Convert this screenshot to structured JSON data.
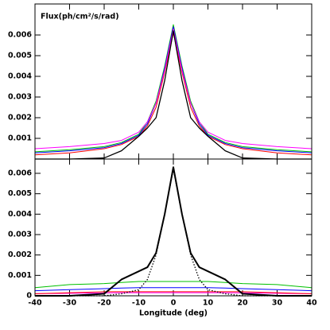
{
  "chart_data": [
    {
      "type": "line",
      "annotation": "Flux(ph/cm²/s/rad)",
      "x": [
        -40,
        -30,
        -20,
        -15,
        -10,
        -7.5,
        -5,
        -2.5,
        0,
        2.5,
        5,
        7.5,
        10,
        15,
        20,
        30,
        40
      ],
      "xlim": [
        -40,
        40
      ],
      "xticks": [
        -40,
        -30,
        -20,
        -10,
        0,
        10,
        20,
        30,
        40
      ],
      "xtick_labels": false,
      "ylim": [
        0,
        0.0075
      ],
      "yticks": [
        0.001,
        0.002,
        0.003,
        0.004,
        0.005,
        0.006
      ],
      "series": [
        {
          "color": "#ff0000",
          "style": "solid",
          "width": 1,
          "values": [
            0.0002,
            0.0003,
            0.0005,
            0.0007,
            0.0011,
            0.0016,
            0.0025,
            0.0042,
            0.0061,
            0.0042,
            0.0025,
            0.0016,
            0.0011,
            0.0007,
            0.0005,
            0.0003,
            0.0002
          ]
        },
        {
          "color": "#00c000",
          "style": "solid",
          "width": 1,
          "values": [
            0.00035,
            0.00045,
            0.0006,
            0.0008,
            0.0012,
            0.0018,
            0.0028,
            0.0045,
            0.0065,
            0.0045,
            0.0028,
            0.0018,
            0.0012,
            0.0008,
            0.0006,
            0.00045,
            0.00035
          ]
        },
        {
          "color": "#0000ff",
          "style": "solid",
          "width": 1,
          "values": [
            0.0003,
            0.0004,
            0.00055,
            0.00075,
            0.00115,
            0.0017,
            0.0027,
            0.0044,
            0.0064,
            0.0044,
            0.0027,
            0.0017,
            0.00115,
            0.00075,
            0.00055,
            0.0004,
            0.0003
          ]
        },
        {
          "color": "#ff00ff",
          "style": "solid",
          "width": 1,
          "values": [
            0.0005,
            0.0006,
            0.00075,
            0.0009,
            0.0013,
            0.0018,
            0.0027,
            0.0043,
            0.0063,
            0.0043,
            0.0027,
            0.0018,
            0.0013,
            0.0009,
            0.00075,
            0.0006,
            0.0005
          ]
        },
        {
          "color": "#000000",
          "style": "solid",
          "width": 1.3,
          "values": [
            0,
            0,
            5e-05,
            0.0004,
            0.0011,
            0.0015,
            0.002,
            0.0038,
            0.0062,
            0.0038,
            0.002,
            0.0015,
            0.0011,
            0.0004,
            5e-05,
            0,
            0
          ]
        }
      ]
    },
    {
      "type": "line",
      "xlabel": "Longitude (deg)",
      "x": [
        -40,
        -30,
        -20,
        -15,
        -10,
        -7.5,
        -5,
        -2.5,
        0,
        2.5,
        5,
        7.5,
        10,
        15,
        20,
        30,
        40
      ],
      "xlim": [
        -40,
        40
      ],
      "xticks": [
        -40,
        -30,
        -20,
        -10,
        0,
        10,
        20,
        30,
        40
      ],
      "xtick_labels": true,
      "ylim": [
        0,
        0.0067
      ],
      "yticks": [
        0,
        0.001,
        0.002,
        0.003,
        0.004,
        0.005,
        0.006
      ],
      "series": [
        {
          "color": "#00c000",
          "style": "solid",
          "width": 1,
          "values": [
            0.0004,
            0.00055,
            0.0006,
            0.00065,
            0.0007,
            0.0007,
            0.0007,
            0.0007,
            0.0007,
            0.0007,
            0.0007,
            0.0007,
            0.0007,
            0.00065,
            0.0006,
            0.00055,
            0.0004
          ]
        },
        {
          "color": "#0000ff",
          "style": "solid",
          "width": 1,
          "values": [
            0.00025,
            0.0003,
            0.00035,
            0.00038,
            0.0004,
            0.0004,
            0.0004,
            0.0004,
            0.0004,
            0.0004,
            0.0004,
            0.0004,
            0.0004,
            0.00038,
            0.00035,
            0.0003,
            0.00025
          ]
        },
        {
          "color": "#ff00ff",
          "style": "solid",
          "width": 1,
          "values": [
            0.0001,
            0.00012,
            0.00014,
            0.00015,
            0.00015,
            0.00015,
            0.00015,
            0.00015,
            0.00015,
            0.00015,
            0.00015,
            0.00015,
            0.00015,
            0.00015,
            0.00014,
            0.00012,
            0.0001
          ]
        },
        {
          "color": "#ff0000",
          "style": "solid",
          "width": 1,
          "values": [
            0.0001,
            0.00015,
            0.0002,
            0.0002,
            0.0002,
            0.0002,
            0.0002,
            0.0002,
            0.0002,
            0.0002,
            0.0002,
            0.0002,
            0.0002,
            0.0002,
            0.0002,
            0.00015,
            0.0001
          ]
        },
        {
          "color": "#000000",
          "style": "dotted",
          "width": 1.3,
          "values": [
            0,
            0,
            0,
            0.0001,
            0.0003,
            0.0008,
            0.002,
            0.004,
            0.0062,
            0.004,
            0.002,
            0.0008,
            0.0003,
            0.0001,
            0,
            0,
            0
          ]
        },
        {
          "color": "#000000",
          "style": "solid",
          "width": 2,
          "values": [
            0,
            0,
            0.0001,
            0.0008,
            0.0012,
            0.0014,
            0.0021,
            0.004,
            0.0063,
            0.004,
            0.0021,
            0.0014,
            0.0012,
            0.0008,
            0.0001,
            0,
            0
          ]
        }
      ]
    }
  ]
}
